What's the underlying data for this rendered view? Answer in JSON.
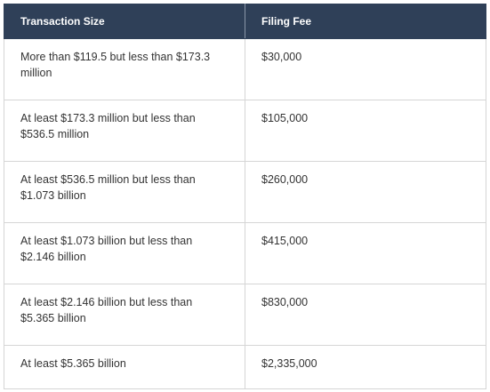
{
  "table": {
    "headers": {
      "size": "Transaction Size",
      "fee": "Filing Fee"
    },
    "rows": [
      {
        "size": "More than $119.5 but less than $173.3 million",
        "fee": "$30,000"
      },
      {
        "size": "At least $173.3 million but less than $536.5 million",
        "fee": "$105,000"
      },
      {
        "size": "At least $536.5 million but less than $1.073 billion",
        "fee": "$260,000"
      },
      {
        "size": "At least $1.073 billion but less than $2.146 billion",
        "fee": "$415,000"
      },
      {
        "size": "At least $2.146 billion but less than $5.365 billion",
        "fee": "$830,000"
      },
      {
        "size": "At least $5.365 billion",
        "fee": "$2,335,000"
      }
    ]
  },
  "colors": {
    "header_background": "#2f4058",
    "header_text": "#ffffff",
    "border": "#d5d5d5",
    "body_text": "#333333"
  }
}
